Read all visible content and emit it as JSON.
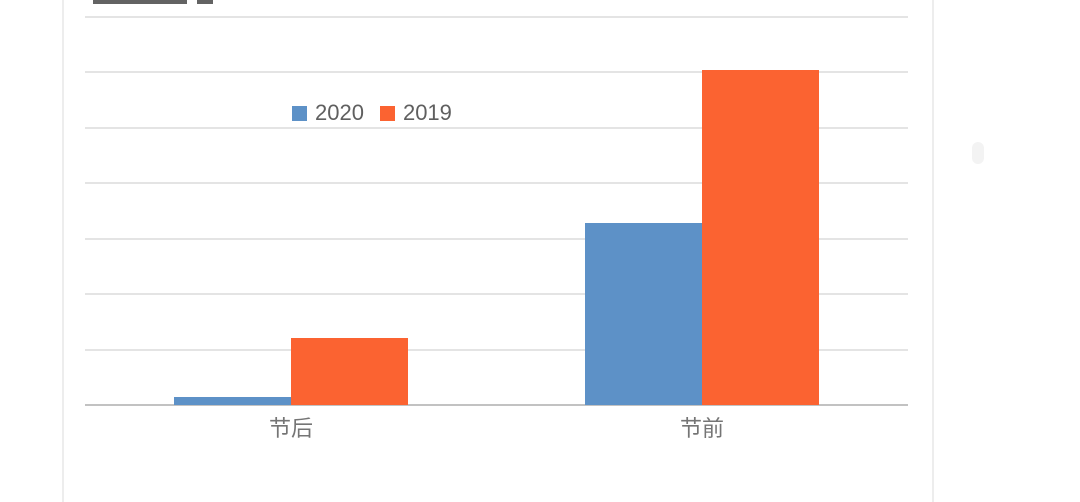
{
  "chart_data": {
    "type": "bar",
    "title": "",
    "categories": [
      "节后",
      "节前"
    ],
    "series": [
      {
        "name": "2020",
        "color": "#5D91C7",
        "values": [
          0.15,
          3.28
        ]
      },
      {
        "name": "2019",
        "color": "#FB6331",
        "values": [
          1.2,
          6.05
        ]
      }
    ],
    "ylim": [
      0,
      7
    ],
    "gridline_interval": 1,
    "grid": true,
    "legend_position": "inside-top-left",
    "y_axis_tick_labels_visible": false,
    "x_axis_line_visible": true
  },
  "colors": {
    "gridline": "#e4e4e4",
    "axis_line": "#c2c2c2",
    "legend_text": "#5f5f5f",
    "axis_label_text": "#757575",
    "card_border": "#ededed"
  }
}
